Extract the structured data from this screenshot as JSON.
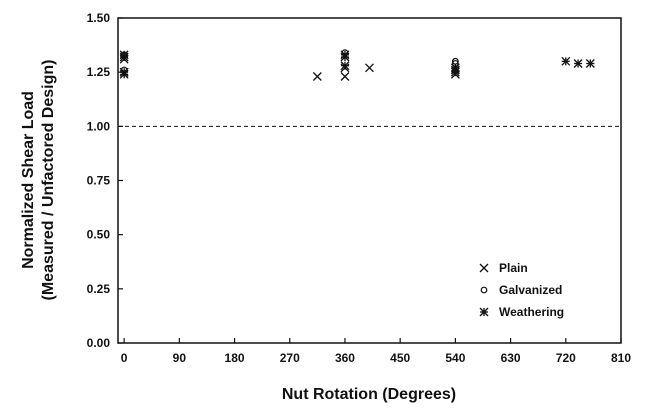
{
  "chart_data": {
    "type": "scatter",
    "title": "",
    "xlabel": "Nut Rotation (Degrees)",
    "ylabel_line1": "Normalized Shear Load",
    "ylabel_line2": "(Measured / Unfactored Design)",
    "xlim": [
      -10,
      810
    ],
    "ylim": [
      0,
      1.5
    ],
    "x_ticks": [
      0,
      90,
      180,
      270,
      360,
      450,
      540,
      630,
      720,
      810
    ],
    "x_tick_labels": [
      "0",
      "90",
      "180",
      "270",
      "360",
      "450",
      "540",
      "630",
      "720",
      "810"
    ],
    "y_ticks": [
      0,
      0.25,
      0.5,
      0.75,
      1.0,
      1.25,
      1.5
    ],
    "y_tick_labels": [
      "0.00",
      "0.25",
      "0.50",
      "0.75",
      "1.00",
      "1.25",
      "1.50"
    ],
    "reference_line": {
      "y": 1.0,
      "style": "dashed"
    },
    "grid": false,
    "legend_position": "bottom-right",
    "series": [
      {
        "name": "Plain",
        "marker": "x",
        "points": [
          [
            0,
            1.31
          ],
          [
            0,
            1.25
          ],
          [
            315,
            1.23
          ],
          [
            360,
            1.23
          ],
          [
            360,
            1.27
          ],
          [
            400,
            1.27
          ],
          [
            540,
            1.24
          ],
          [
            540,
            1.26
          ]
        ]
      },
      {
        "name": "Galvanized",
        "marker": "circle",
        "points": [
          [
            0,
            1.33
          ],
          [
            0,
            1.26
          ],
          [
            360,
            1.34
          ],
          [
            540,
            1.3
          ],
          [
            540,
            1.29
          ]
        ]
      },
      {
        "name": "Weathering",
        "marker": "asterisk",
        "points": [
          [
            0,
            1.32
          ],
          [
            0,
            1.33
          ],
          [
            0,
            1.25
          ],
          [
            0,
            1.24
          ],
          [
            360,
            1.33
          ],
          [
            360,
            1.32
          ],
          [
            360,
            1.28
          ],
          [
            540,
            1.25
          ],
          [
            540,
            1.27
          ],
          [
            720,
            1.3
          ],
          [
            740,
            1.29
          ],
          [
            760,
            1.29
          ]
        ]
      }
    ]
  }
}
